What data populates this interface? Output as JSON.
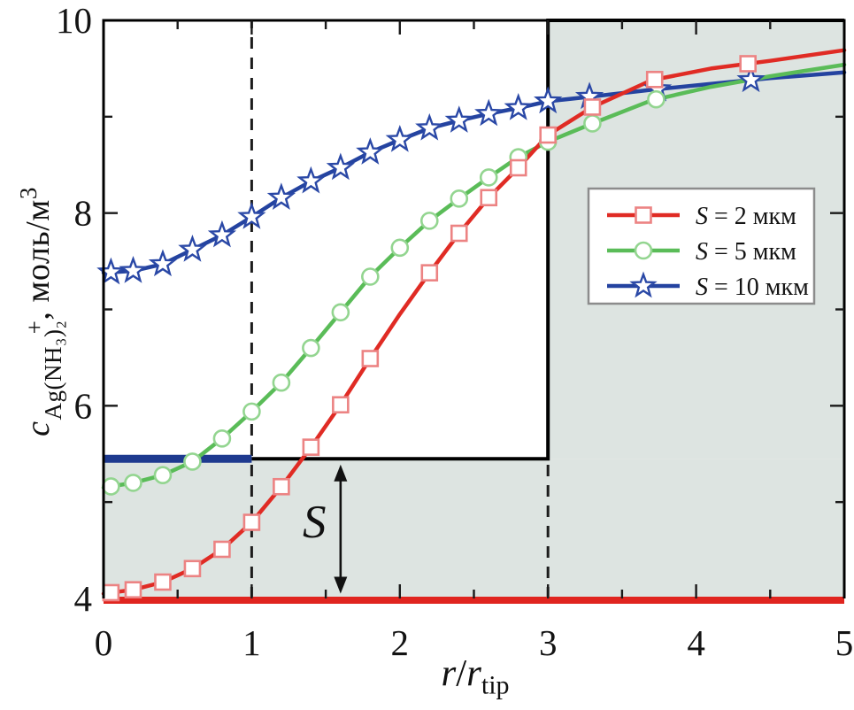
{
  "labels": {
    "y_var": "c",
    "y_sub": "Ag(NH₃)₂",
    "y_sup": "+",
    "y_rest": ", моль/м",
    "y_rest_sup": "3",
    "x_num": "r",
    "x_slash": "/",
    "x_den": "r",
    "x_den_sub": "tip",
    "s_annotation": "S"
  },
  "chart_data": {
    "type": "line",
    "title": "",
    "xlabel": "r/r_tip",
    "ylabel": "c_Ag(NH3)2^+, моль/м³",
    "xlim": [
      0,
      5
    ],
    "ylim": [
      4,
      10
    ],
    "grid": false,
    "x_major_ticks": [
      0,
      1,
      2,
      3,
      4,
      5
    ],
    "x_minor_ticks": [
      0.5,
      1.5,
      2.5,
      3.5,
      4.5
    ],
    "x_tick_labels": [
      "0",
      "1",
      "2",
      "3",
      "4",
      "5"
    ],
    "y_major_ticks": [
      4,
      6,
      8,
      10
    ],
    "y_minor_ticks": [
      5,
      7,
      9
    ],
    "y_tick_labels": [
      "4",
      "6",
      "8",
      "10"
    ],
    "x": [
      0,
      0.2,
      0.4,
      0.6,
      0.8,
      1.0,
      1.2,
      1.4,
      1.6,
      1.8,
      2.0,
      2.2,
      2.4,
      2.6,
      2.8,
      3.0,
      3.3,
      3.7,
      4.1,
      4.5,
      5.0
    ],
    "series": [
      {
        "name": "S = 10 мкм",
        "color": "#2443a0",
        "marker": "star",
        "marker_edge": "#2a48a6",
        "values": [
          7.38,
          7.4,
          7.47,
          7.62,
          7.77,
          7.96,
          8.16,
          8.33,
          8.47,
          8.63,
          8.76,
          8.88,
          8.96,
          9.03,
          9.09,
          9.16,
          9.21,
          9.28,
          9.34,
          9.4,
          9.46
        ],
        "marker_x": [
          0.05,
          0.2,
          0.4,
          0.6,
          0.8,
          1.0,
          1.2,
          1.4,
          1.6,
          1.8,
          2.0,
          2.2,
          2.4,
          2.6,
          2.8,
          3.0,
          3.28,
          3.74,
          4.37
        ]
      },
      {
        "name": "S = 5 мкм",
        "color": "#5abc58",
        "marker": "circle",
        "marker_edge": "#93d590",
        "values": [
          5.15,
          5.2,
          5.28,
          5.42,
          5.66,
          5.94,
          6.24,
          6.6,
          6.97,
          7.34,
          7.64,
          7.92,
          8.15,
          8.37,
          8.58,
          8.74,
          8.93,
          9.17,
          9.31,
          9.42,
          9.54
        ],
        "marker_x": [
          0.05,
          0.2,
          0.4,
          0.6,
          0.8,
          1.0,
          1.2,
          1.4,
          1.6,
          1.8,
          2.0,
          2.2,
          2.4,
          2.6,
          2.8,
          3.0,
          3.3,
          3.73
        ]
      },
      {
        "name": "S = 2 мкм",
        "color": "#e02b24",
        "marker": "square",
        "marker_edge": "#ec8383",
        "values": [
          4.05,
          4.09,
          4.17,
          4.31,
          4.51,
          4.79,
          5.16,
          5.57,
          6.01,
          6.49,
          6.95,
          7.38,
          7.79,
          8.16,
          8.47,
          8.81,
          9.1,
          9.38,
          9.5,
          9.58,
          9.69
        ],
        "marker_x": [
          0.05,
          0.2,
          0.4,
          0.6,
          0.8,
          1.0,
          1.2,
          1.4,
          1.6,
          1.8,
          2.2,
          2.4,
          2.6,
          2.8,
          3.0,
          3.3,
          3.72,
          4.35
        ]
      }
    ],
    "legend": {
      "position": "upper right inside shaded region",
      "items": [
        {
          "label": "S = 2 мкм",
          "color": "#e02b24",
          "marker": "square",
          "marker_edge": "#ec8383"
        },
        {
          "label": "S = 5 мкм",
          "color": "#5abc58",
          "marker": "circle",
          "marker_edge": "#93d590"
        },
        {
          "label": "S = 10 мкм",
          "color": "#2443a0",
          "marker": "star",
          "marker_edge": "#2a48a6"
        }
      ]
    },
    "annotations": {
      "s_label": "S",
      "s_arrow": {
        "x": 1.6,
        "y1": 4.05,
        "y2": 5.39
      },
      "dashed_vlines": [
        {
          "x": 1,
          "y1": 4,
          "y2": 10
        },
        {
          "x": 3,
          "y1": 4,
          "y2": 5.45
        }
      ],
      "blue_hline": {
        "y": 5.45,
        "x1": 0,
        "x2": 1,
        "color": "#1e3a8f"
      },
      "red_hline": {
        "y": 4,
        "x1": 0,
        "x2": 5,
        "color": "#e0251f"
      },
      "step_border": [
        [
          1,
          5.45
        ],
        [
          3,
          5.45
        ],
        [
          3,
          10
        ],
        [
          5,
          10
        ]
      ],
      "shaded_regions": [
        {
          "x1": 0,
          "x2": 5,
          "y1": 4,
          "y2": 5.45
        },
        {
          "x1": 3,
          "x2": 5,
          "y1": 5.45,
          "y2": 10
        }
      ],
      "shade_color": "#dde4e1"
    }
  }
}
